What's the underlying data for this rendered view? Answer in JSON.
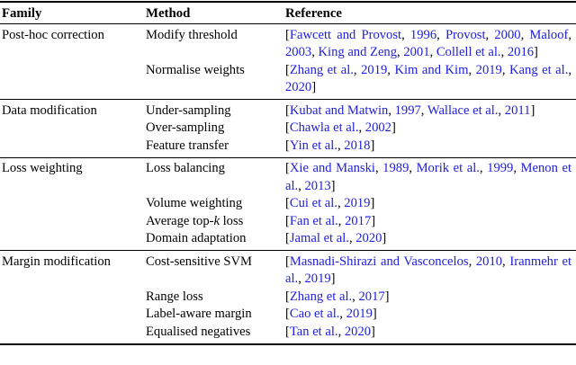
{
  "page": {
    "background": "#ffffff",
    "text_color": "#000000",
    "link_color": "#2020dd"
  },
  "table": {
    "columns": [
      {
        "label": "Family"
      },
      {
        "label": "Method"
      },
      {
        "label": "Reference"
      }
    ],
    "groups": [
      {
        "family": "Post-hoc correction",
        "rows": [
          {
            "method": "Modify threshold",
            "reference": [
              {
                "t": "["
              },
              {
                "t": "Fawcett and Provost",
                "link": true
              },
              {
                "t": ", "
              },
              {
                "t": "1996",
                "link": true
              },
              {
                "t": ", "
              },
              {
                "t": "Provost",
                "link": true
              },
              {
                "t": ", "
              },
              {
                "t": "2000",
                "link": true
              },
              {
                "t": ", "
              },
              {
                "t": "Mal­oof",
                "link": true
              },
              {
                "t": ", "
              },
              {
                "t": "2003",
                "link": true
              },
              {
                "t": ", "
              },
              {
                "t": "King and Zeng",
                "link": true
              },
              {
                "t": ", "
              },
              {
                "t": "2001",
                "link": true
              },
              {
                "t": ", "
              },
              {
                "t": "Collell et al.",
                "link": true
              },
              {
                "t": ", "
              },
              {
                "t": "2016",
                "link": true
              },
              {
                "t": "]"
              }
            ]
          },
          {
            "method": "Normalise weights",
            "reference": [
              {
                "t": "["
              },
              {
                "t": "Zhang et al.",
                "link": true
              },
              {
                "t": ", "
              },
              {
                "t": "2019",
                "link": true
              },
              {
                "t": ", "
              },
              {
                "t": "Kim and Kim",
                "link": true
              },
              {
                "t": ", "
              },
              {
                "t": "2019",
                "link": true
              },
              {
                "t": ", "
              },
              {
                "t": "Kang et al.",
                "link": true
              },
              {
                "t": ", "
              },
              {
                "t": "2020",
                "link": true
              },
              {
                "t": "]"
              }
            ]
          }
        ]
      },
      {
        "family": "Data modification",
        "rows": [
          {
            "method": "Under-sampling",
            "reference": [
              {
                "t": "["
              },
              {
                "t": "Kubat and Matwin",
                "link": true
              },
              {
                "t": ", "
              },
              {
                "t": "1997",
                "link": true
              },
              {
                "t": ", "
              },
              {
                "t": "Wallace et al.",
                "link": true
              },
              {
                "t": ", "
              },
              {
                "t": "2011",
                "link": true
              },
              {
                "t": "]"
              }
            ]
          },
          {
            "method": "Over-sampling",
            "reference": [
              {
                "t": "["
              },
              {
                "t": "Chawla et al.",
                "link": true
              },
              {
                "t": ", "
              },
              {
                "t": "2002",
                "link": true
              },
              {
                "t": "]"
              }
            ]
          },
          {
            "method": "Feature transfer",
            "reference": [
              {
                "t": "["
              },
              {
                "t": "Yin et al.",
                "link": true
              },
              {
                "t": ", "
              },
              {
                "t": "2018",
                "link": true
              },
              {
                "t": "]"
              }
            ]
          }
        ]
      },
      {
        "family": "Loss weighting",
        "rows": [
          {
            "method": "Loss balancing",
            "reference": [
              {
                "t": "["
              },
              {
                "t": "Xie and Manski",
                "link": true
              },
              {
                "t": ", "
              },
              {
                "t": "1989",
                "link": true
              },
              {
                "t": ", "
              },
              {
                "t": "Morik et al.",
                "link": true
              },
              {
                "t": ", "
              },
              {
                "t": "1999",
                "link": true
              },
              {
                "t": ", "
              },
              {
                "t": "Menon et al.",
                "link": true
              },
              {
                "t": ", "
              },
              {
                "t": "2013",
                "link": true
              },
              {
                "t": "]"
              }
            ]
          },
          {
            "method": "Volume weighting",
            "reference": [
              {
                "t": "["
              },
              {
                "t": "Cui et al.",
                "link": true
              },
              {
                "t": ", "
              },
              {
                "t": "2019",
                "link": true
              },
              {
                "t": "]"
              }
            ]
          },
          {
            "method": [
              {
                "t": "Average top-"
              },
              {
                "t": "k",
                "italic": true
              },
              {
                "t": " loss"
              }
            ],
            "reference": [
              {
                "t": "["
              },
              {
                "t": "Fan et al.",
                "link": true
              },
              {
                "t": ", "
              },
              {
                "t": "2017",
                "link": true
              },
              {
                "t": "]"
              }
            ]
          },
          {
            "method": "Domain adaptation",
            "reference": [
              {
                "t": "["
              },
              {
                "t": "Jamal et al.",
                "link": true
              },
              {
                "t": ", "
              },
              {
                "t": "2020",
                "link": true
              },
              {
                "t": "]"
              }
            ]
          }
        ]
      },
      {
        "family": "Margin modification",
        "rows": [
          {
            "method": "Cost-sensitive SVM",
            "reference": [
              {
                "t": "["
              },
              {
                "t": "Masnadi-Shirazi and Vasconcelos",
                "link": true
              },
              {
                "t": ", "
              },
              {
                "t": "2010",
                "link": true
              },
              {
                "t": ", "
              },
              {
                "t": "Iran­mehr et al.",
                "link": true
              },
              {
                "t": ", "
              },
              {
                "t": "2019",
                "link": true
              },
              {
                "t": "]"
              }
            ]
          },
          {
            "method": "Range loss",
            "reference": [
              {
                "t": "["
              },
              {
                "t": "Zhang et al.",
                "link": true
              },
              {
                "t": ", "
              },
              {
                "t": "2017",
                "link": true
              },
              {
                "t": "]"
              }
            ]
          },
          {
            "method": "Label-aware margin",
            "reference": [
              {
                "t": "["
              },
              {
                "t": "Cao et al.",
                "link": true
              },
              {
                "t": ", "
              },
              {
                "t": "2019",
                "link": true
              },
              {
                "t": "]"
              }
            ]
          },
          {
            "method": "Equalised negatives",
            "reference": [
              {
                "t": "["
              },
              {
                "t": "Tan et al.",
                "link": true
              },
              {
                "t": ", "
              },
              {
                "t": "2020",
                "link": true
              },
              {
                "t": "]"
              }
            ]
          }
        ]
      }
    ]
  }
}
